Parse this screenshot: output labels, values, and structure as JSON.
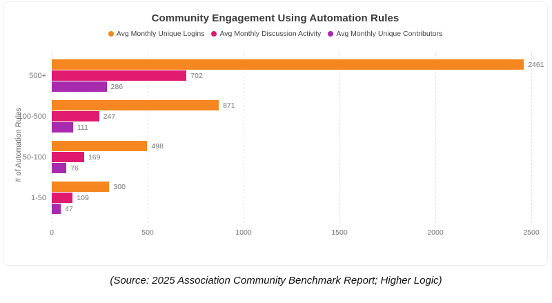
{
  "chart_data": {
    "type": "bar",
    "orientation": "horizontal",
    "title": "Community Engagement Using Automation Rules",
    "xlabel": "",
    "ylabel": "# of Automation Rules",
    "categories": [
      "500+",
      "100-500",
      "50-100",
      "1-50"
    ],
    "series": [
      {
        "name": "Avg Monthly Unique Logins",
        "color": "#F6861F",
        "values": [
          2461,
          871,
          498,
          300
        ]
      },
      {
        "name": "Avg Monthly Discussion Activity",
        "color": "#E01A6F",
        "values": [
          702,
          247,
          169,
          109
        ]
      },
      {
        "name": "Avg Monthly Unique Contributors",
        "color": "#A82AAD",
        "values": [
          286,
          111,
          76,
          47
        ]
      }
    ],
    "x_ticks": [
      0,
      500,
      1000,
      1500,
      2000,
      2500
    ],
    "xlim": [
      0,
      2500
    ],
    "grid": "vertical-dotted",
    "legend_position": "top"
  },
  "caption": "(Source: 2025 Association Community Benchmark Report; Higher Logic)"
}
